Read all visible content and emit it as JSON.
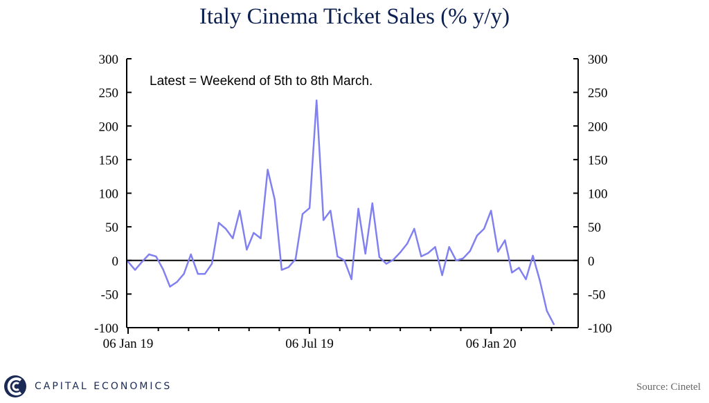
{
  "chart_data": {
    "type": "line",
    "title": "Italy Cinema Ticket Sales (% y/y)",
    "annotation": "Latest = Weekend of 5th to 8th March.",
    "source": "Source: Cinetel",
    "logo_text": "CAPITAL ECONOMICS",
    "xlabel": "",
    "ylabel": "",
    "ylim": [
      -100,
      300
    ],
    "y_ticks": [
      300,
      250,
      200,
      150,
      100,
      50,
      0,
      -50,
      -100
    ],
    "y_tick_labels": [
      "300",
      "250",
      "200",
      "150",
      "100",
      "50",
      "0",
      "-50",
      "-100"
    ],
    "x_ticks": [
      "06 Jan 19",
      "06 Jul 19",
      "06 Jan 20"
    ],
    "grid": false,
    "zero_line": true,
    "line_color": "#8080f0",
    "x_start": "06 Jan 19",
    "x_interval": "weekly",
    "series": [
      {
        "values": [
          -2,
          -14,
          -2,
          9,
          6,
          -13,
          -39,
          -32,
          -20,
          9,
          -20,
          -20,
          -5,
          56,
          47,
          33,
          74,
          16,
          41,
          33,
          135,
          91,
          -14,
          -10,
          2,
          69,
          78,
          238,
          60,
          74,
          6,
          0,
          -28,
          77,
          10,
          85,
          5,
          -5,
          1,
          12,
          25,
          47,
          6,
          11,
          20,
          -22,
          20,
          0,
          3,
          14,
          37,
          47,
          74,
          13,
          30,
          -18,
          -11,
          -28,
          7,
          -30,
          -75,
          -95
        ]
      }
    ]
  }
}
